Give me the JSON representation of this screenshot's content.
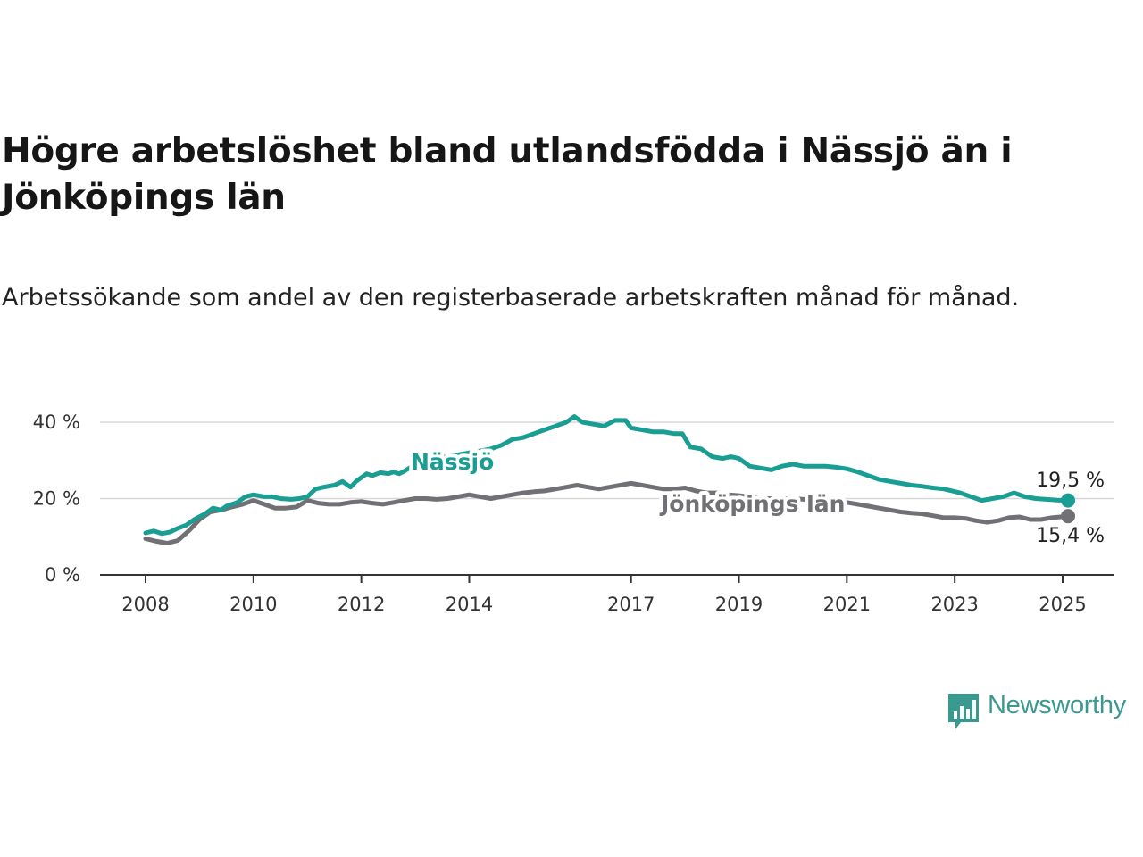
{
  "title": "Högre arbetslöshet bland utlandsfödda i Nässjö än i Jönköpings län",
  "subtitle": "Arbetssökande som andel av den registerbaserade arbetskraften månad för månad.",
  "brand": {
    "name": "Newsworthy",
    "color": "#3a9a8f",
    "icon": "newsworthy-logo-icon"
  },
  "chart_data": {
    "type": "line",
    "title": "Högre arbetslöshet bland utlandsfödda i Nässjö än i Jönköpings län",
    "subtitle": "Arbetssökande som andel av den registerbaserade arbetskraften månad för månad.",
    "xlabel": "",
    "ylabel": "",
    "xlim": [
      2007.8,
      2025.9
    ],
    "ylim": [
      0,
      40
    ],
    "y_ticks": [
      {
        "value": 0,
        "label": "0 %"
      },
      {
        "value": 20,
        "label": "20 %"
      },
      {
        "value": 40,
        "label": "40 %"
      }
    ],
    "x_ticks": [
      {
        "value": 2008,
        "label": "2008"
      },
      {
        "value": 2010,
        "label": "2010"
      },
      {
        "value": 2012,
        "label": "2012"
      },
      {
        "value": 2014,
        "label": "2014"
      },
      {
        "value": 2017,
        "label": "2017"
      },
      {
        "value": 2019,
        "label": "2019"
      },
      {
        "value": 2021,
        "label": "2021"
      },
      {
        "value": 2023,
        "label": "2023"
      },
      {
        "value": 2025,
        "label": "2025"
      }
    ],
    "grid": true,
    "legend": "inline labels",
    "series": [
      {
        "name": "Nässjö",
        "color": "#1a9e93",
        "end_label": "19,5 %",
        "x": [
          2008.0,
          2008.15,
          2008.3,
          2008.45,
          2008.6,
          2008.75,
          2008.9,
          2009.1,
          2009.25,
          2009.4,
          2009.5,
          2009.7,
          2009.85,
          2010.0,
          2010.2,
          2010.35,
          2010.5,
          2010.7,
          2010.85,
          2011.0,
          2011.15,
          2011.3,
          2011.5,
          2011.65,
          2011.8,
          2011.9,
          2012.0,
          2012.1,
          2012.2,
          2012.35,
          2012.5,
          2012.6,
          2012.7,
          2012.8,
          2013.0,
          2013.2,
          2013.4,
          2013.6,
          2013.8,
          2014.0,
          2014.2,
          2014.4,
          2014.6,
          2014.8,
          2015.0,
          2015.2,
          2015.4,
          2015.6,
          2015.8,
          2015.95,
          2016.1,
          2016.3,
          2016.5,
          2016.7,
          2016.9,
          2017.0,
          2017.2,
          2017.4,
          2017.6,
          2017.8,
          2017.95,
          2018.1,
          2018.3,
          2018.5,
          2018.7,
          2018.85,
          2019.0,
          2019.2,
          2019.4,
          2019.6,
          2019.8,
          2020.0,
          2020.2,
          2020.4,
          2020.6,
          2020.8,
          2021.0,
          2021.2,
          2021.4,
          2021.6,
          2021.8,
          2022.0,
          2022.2,
          2022.4,
          2022.6,
          2022.8,
          2022.95,
          2023.1,
          2023.3,
          2023.5,
          2023.7,
          2023.9,
          2024.1,
          2024.3,
          2024.5,
          2024.7,
          2024.9,
          2025.1
        ],
        "values": [
          11.0,
          11.5,
          10.8,
          11.2,
          12.2,
          13.0,
          14.5,
          16.0,
          17.5,
          17.0,
          18.0,
          19.0,
          20.5,
          21.0,
          20.5,
          20.5,
          20.0,
          19.8,
          20.0,
          20.5,
          22.5,
          23.0,
          23.5,
          24.5,
          23.0,
          24.5,
          25.5,
          26.5,
          26.0,
          26.8,
          26.5,
          27.0,
          26.5,
          27.2,
          29.0,
          30.0,
          30.5,
          31.0,
          31.5,
          32.0,
          32.5,
          33.0,
          34.0,
          35.5,
          36.0,
          37.0,
          38.0,
          39.0,
          40.0,
          41.5,
          40.0,
          39.5,
          39.0,
          40.5,
          40.5,
          38.5,
          38.0,
          37.5,
          37.5,
          37.0,
          37.0,
          33.5,
          33.0,
          31.0,
          30.5,
          31.0,
          30.5,
          28.5,
          28.0,
          27.5,
          28.5,
          29.0,
          28.5,
          28.5,
          28.5,
          28.2,
          27.8,
          27.0,
          26.0,
          25.0,
          24.5,
          24.0,
          23.5,
          23.2,
          22.8,
          22.5,
          22.0,
          21.5,
          20.5,
          19.5,
          20.0,
          20.5,
          21.5,
          20.5,
          20.0,
          19.8,
          19.6,
          19.5
        ]
      },
      {
        "name": "Jönköpings län",
        "color": "#707075",
        "end_label": "15,4 %",
        "x": [
          2008.0,
          2008.2,
          2008.4,
          2008.6,
          2008.8,
          2009.0,
          2009.2,
          2009.4,
          2009.6,
          2009.8,
          2010.0,
          2010.2,
          2010.4,
          2010.6,
          2010.8,
          2011.0,
          2011.2,
          2011.4,
          2011.6,
          2011.8,
          2012.0,
          2012.2,
          2012.4,
          2012.6,
          2012.8,
          2013.0,
          2013.2,
          2013.4,
          2013.6,
          2013.8,
          2014.0,
          2014.2,
          2014.4,
          2014.6,
          2014.8,
          2015.0,
          2015.2,
          2015.4,
          2015.6,
          2015.8,
          2016.0,
          2016.2,
          2016.4,
          2016.6,
          2016.8,
          2017.0,
          2017.2,
          2017.4,
          2017.6,
          2017.8,
          2018.0,
          2018.2,
          2018.4,
          2018.6,
          2018.8,
          2019.0,
          2019.2,
          2019.4,
          2019.6,
          2019.8,
          2020.0,
          2020.2,
          2020.4,
          2020.6,
          2020.8,
          2021.0,
          2021.2,
          2021.4,
          2021.6,
          2021.8,
          2022.0,
          2022.2,
          2022.4,
          2022.6,
          2022.8,
          2023.0,
          2023.2,
          2023.4,
          2023.6,
          2023.8,
          2024.0,
          2024.2,
          2024.4,
          2024.6,
          2024.8,
          2025.1
        ],
        "values": [
          9.5,
          8.8,
          8.3,
          9.0,
          11.5,
          14.5,
          16.5,
          17.0,
          17.8,
          18.5,
          19.5,
          18.5,
          17.5,
          17.5,
          17.8,
          19.5,
          18.8,
          18.5,
          18.5,
          19.0,
          19.2,
          18.8,
          18.5,
          19.0,
          19.5,
          20.0,
          20.0,
          19.8,
          20.0,
          20.5,
          21.0,
          20.5,
          20.0,
          20.5,
          21.0,
          21.5,
          21.8,
          22.0,
          22.5,
          23.0,
          23.5,
          23.0,
          22.5,
          23.0,
          23.5,
          24.0,
          23.5,
          23.0,
          22.5,
          22.5,
          22.8,
          22.0,
          21.5,
          21.5,
          21.0,
          20.8,
          20.5,
          20.0,
          20.0,
          20.0,
          20.0,
          19.8,
          19.5,
          19.5,
          19.5,
          19.0,
          18.5,
          18.0,
          17.5,
          17.0,
          16.5,
          16.2,
          16.0,
          15.5,
          15.0,
          15.0,
          14.8,
          14.2,
          13.8,
          14.2,
          15.0,
          15.2,
          14.5,
          14.5,
          15.0,
          15.4
        ]
      }
    ]
  }
}
